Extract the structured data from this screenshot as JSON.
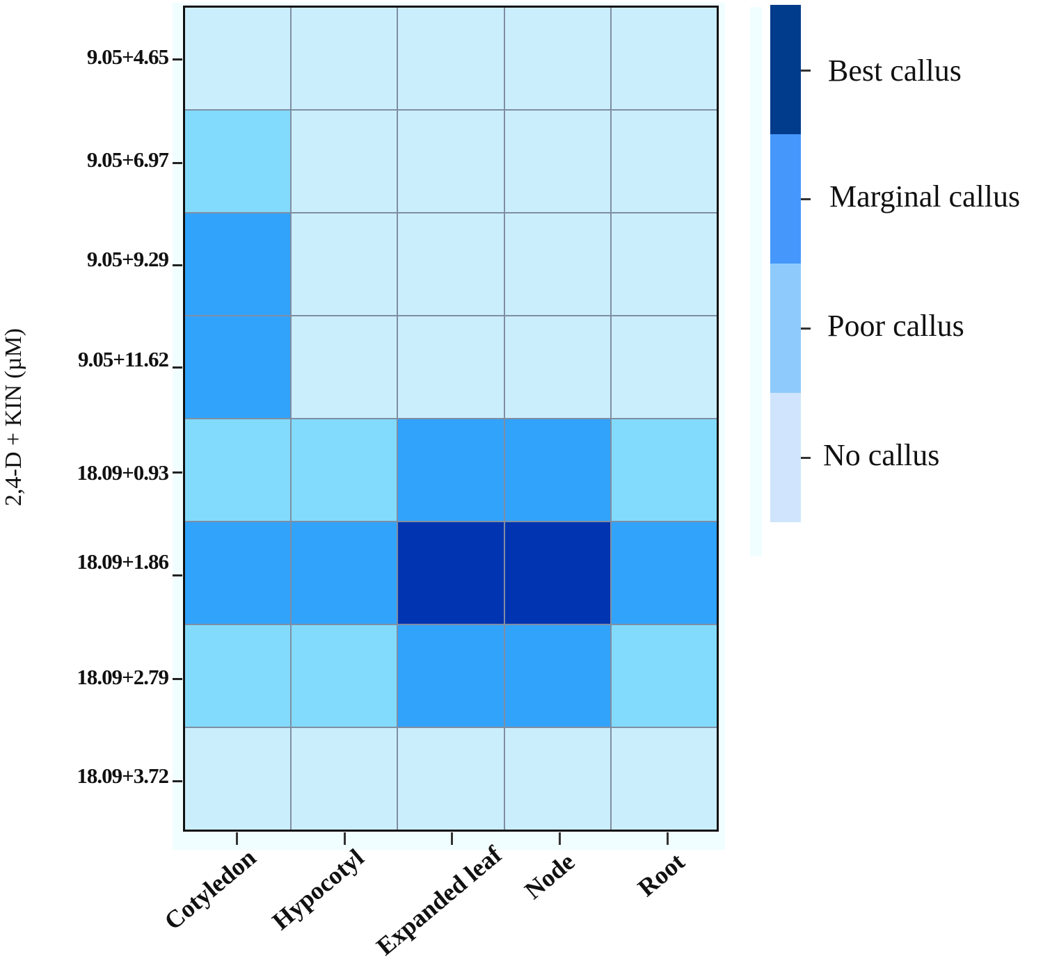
{
  "chart_data": {
    "type": "heatmap",
    "title": "",
    "xlabel": "",
    "ylabel": "2,4-D + KIN (µM)",
    "x_categories": [
      "Cotyledon",
      "Hypocotyl",
      "Expanded leaf",
      "Node",
      "Root"
    ],
    "y_categories": [
      "9.05+4.65",
      "9.05+6.97",
      "9.05+9.29",
      "9.05+11.62",
      "18.09+0.93",
      "18.09+1.86",
      "18.09+2.79",
      "18.09+3.72"
    ],
    "levels": [
      "No callus",
      "Poor callus",
      "Marginal callus",
      "Best callus"
    ],
    "values": [
      [
        0,
        0,
        0,
        0,
        0
      ],
      [
        1,
        0,
        0,
        0,
        0
      ],
      [
        2,
        0,
        0,
        0,
        0
      ],
      [
        2,
        0,
        0,
        0,
        0
      ],
      [
        1,
        1,
        2,
        2,
        1
      ],
      [
        2,
        2,
        3,
        3,
        2
      ],
      [
        1,
        1,
        2,
        2,
        1
      ],
      [
        0,
        0,
        0,
        0,
        0
      ]
    ],
    "value_labels": [
      [
        "No callus",
        "No callus",
        "No callus",
        "No callus",
        "No callus"
      ],
      [
        "Poor callus",
        "No callus",
        "No callus",
        "No callus",
        "No callus"
      ],
      [
        "Marginal callus",
        "No callus",
        "No callus",
        "No callus",
        "No callus"
      ],
      [
        "Marginal callus",
        "No callus",
        "No callus",
        "No callus",
        "No callus"
      ],
      [
        "Poor callus",
        "Poor callus",
        "Marginal callus",
        "Marginal callus",
        "Poor callus"
      ],
      [
        "Marginal callus",
        "Marginal callus",
        "Best callus",
        "Best callus",
        "Marginal callus"
      ],
      [
        "Poor callus",
        "Poor callus",
        "Marginal callus",
        "Marginal callus",
        "Poor callus"
      ],
      [
        "No callus",
        "No callus",
        "No callus",
        "No callus",
        "No callus"
      ]
    ],
    "cell_colors": [
      "#cbeefc",
      "#82dbfd",
      "#31a3fb",
      "#0134b1"
    ],
    "legend": {
      "position": "right",
      "entries": [
        {
          "label": "Best callus",
          "color": "#013b8c"
        },
        {
          "label": "Marginal callus",
          "color": "#4597fc"
        },
        {
          "label": "Poor callus",
          "color": "#8ecbfc"
        },
        {
          "label": "No callus",
          "color": "#d0e5fd"
        }
      ]
    },
    "grid": true
  },
  "axes": {
    "ylabel": "2,4-D + KIN (µM)",
    "yticks": [
      "9.05+4.65",
      "9.05+6.97",
      "9.05+9.29",
      "9.05+11.62",
      "18.09+0.93",
      "18.09+1.86",
      "18.09+2.79",
      "18.09+3.72"
    ],
    "xticks": [
      "Cotyledon",
      "Hypocotyl",
      "Expanded leaf",
      "Node",
      "Root"
    ]
  },
  "legend": {
    "labels": [
      "Best callus",
      "Marginal callus",
      "Poor callus",
      "No callus"
    ]
  }
}
